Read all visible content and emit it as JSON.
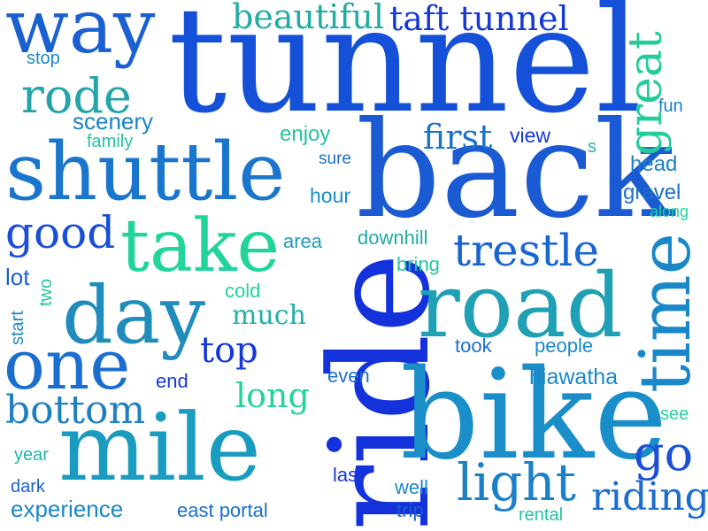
{
  "words": [
    {
      "text": "tunnel",
      "color": "#1450d8"
    },
    {
      "text": "back",
      "color": "#1a5ad2"
    },
    {
      "text": "ride",
      "color": "#1432dc"
    },
    {
      "text": "bike",
      "color": "#1a8ec8"
    },
    {
      "text": "road",
      "color": "#1fa0b4"
    },
    {
      "text": "mile",
      "color": "#1a9cc0"
    },
    {
      "text": "shuttle",
      "color": "#1a76cc"
    },
    {
      "text": "way",
      "color": "#1a60d0"
    },
    {
      "text": "day",
      "color": "#1f8cbc"
    },
    {
      "text": "take",
      "color": "#22d49c"
    },
    {
      "text": "one",
      "color": "#1a6ed0"
    },
    {
      "text": "time",
      "color": "#1a88c8"
    },
    {
      "text": "trestle",
      "color": "#1a66d0"
    },
    {
      "text": "light",
      "color": "#1a80c8"
    },
    {
      "text": "great",
      "color": "#22cc9c"
    },
    {
      "text": "rode",
      "color": "#22a4a8"
    },
    {
      "text": "good",
      "color": "#1a4ed8"
    },
    {
      "text": "bottom",
      "color": "#1f80c0"
    },
    {
      "text": "go",
      "color": "#1a50d8"
    },
    {
      "text": "riding",
      "color": "#1a6cd0"
    },
    {
      "text": "beautiful",
      "color": "#22aca4"
    },
    {
      "text": "taft tunnel",
      "color": "#1438d8"
    },
    {
      "text": "first",
      "color": "#1a74cc"
    },
    {
      "text": "long",
      "color": "#22d49c"
    },
    {
      "text": "top",
      "color": "#1438dc"
    },
    {
      "text": "much",
      "color": "#22b0a8"
    },
    {
      "text": "scenery",
      "color": "#1a84c8"
    },
    {
      "text": "experience",
      "color": "#1a88c4"
    },
    {
      "text": "hiawatha",
      "color": "#1a88c8"
    },
    {
      "text": "gravel",
      "color": "#1a70cc"
    },
    {
      "text": "enjoy",
      "color": "#22c4a0"
    },
    {
      "text": "hour",
      "color": "#1a8ec8"
    },
    {
      "text": "downhill",
      "color": "#22a8a8"
    },
    {
      "text": "area",
      "color": "#1f9cb8"
    },
    {
      "text": "view",
      "color": "#1438d8"
    },
    {
      "text": "head",
      "color": "#1a80c8"
    },
    {
      "text": "bring",
      "color": "#22c4a0"
    },
    {
      "text": "took",
      "color": "#1a6ed0"
    },
    {
      "text": "people",
      "color": "#1a88c8"
    },
    {
      "text": "east portal",
      "color": "#1a70cc"
    },
    {
      "text": "cold",
      "color": "#22d49c"
    },
    {
      "text": "end",
      "color": "#1438d8"
    },
    {
      "text": "even",
      "color": "#1a70cc"
    },
    {
      "text": "lot",
      "color": "#1a60d0"
    },
    {
      "text": "two",
      "color": "#22c4a0"
    },
    {
      "text": "start",
      "color": "#1a88c8"
    },
    {
      "text": "last",
      "color": "#1438d8"
    },
    {
      "text": "well",
      "color": "#1a88c8"
    },
    {
      "text": "trip",
      "color": "#1a5ad2"
    },
    {
      "text": "dark",
      "color": "#1a60d0"
    },
    {
      "text": "rental",
      "color": "#22c4a0"
    },
    {
      "text": "see",
      "color": "#22d49c"
    },
    {
      "text": "year",
      "color": "#22b4a8"
    },
    {
      "text": "stop",
      "color": "#1a88c8"
    },
    {
      "text": "family",
      "color": "#22c4a0"
    },
    {
      "text": "sure",
      "color": "#1a70cc"
    },
    {
      "text": "fun",
      "color": "#1a80c8"
    },
    {
      "text": "s",
      "color": "#22b4a8"
    },
    {
      "text": "along",
      "color": "#22d49c"
    }
  ]
}
